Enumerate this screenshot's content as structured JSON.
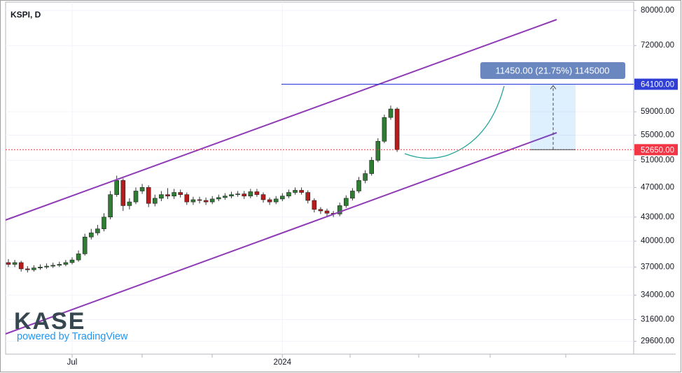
{
  "chart_data": {
    "type": "candlestick",
    "title": "KSPI, D",
    "logo": "KASE",
    "logo_subtitle": "powered by TradingView",
    "log_scale": true,
    "up_color": "#2e7d32",
    "down_color": "#b71c1c",
    "categories": [
      null,
      null,
      null,
      null,
      null,
      null,
      null,
      null,
      null,
      null,
      "Jul",
      null,
      null,
      null,
      null,
      null,
      null,
      null,
      null,
      null,
      null,
      null,
      null,
      null,
      null,
      null,
      null,
      null,
      null,
      null,
      null,
      null,
      null,
      null,
      null,
      null,
      null,
      null,
      null,
      null,
      null,
      null,
      null,
      "2024",
      null,
      null,
      null,
      null,
      null,
      null,
      null,
      null,
      null,
      null,
      null,
      null,
      null,
      null,
      null,
      null,
      null,
      null
    ],
    "open": [
      37500,
      37300,
      37500,
      36800,
      36700,
      36900,
      37000,
      37100,
      37200,
      37300,
      37500,
      37800,
      38500,
      40500,
      41000,
      41500,
      43000,
      46000,
      48000,
      44500,
      45000,
      46500,
      47000,
      44800,
      45500,
      46000,
      45800,
      46300,
      46000,
      45000,
      45300,
      45200,
      45000,
      45400,
      45600,
      45800,
      46000,
      46100,
      45800,
      46400,
      46000,
      45300,
      45000,
      45400,
      45800,
      46300,
      46600,
      46300,
      45200,
      44000,
      43800,
      43500,
      43400,
      44500,
      45500,
      46500,
      48000,
      49000,
      51000,
      54000,
      58000,
      59500
    ],
    "high": [
      37900,
      37800,
      37700,
      37100,
      37200,
      37300,
      37400,
      37500,
      37600,
      37800,
      38100,
      38900,
      40900,
      41500,
      42000,
      43500,
      46500,
      48700,
      48300,
      45500,
      47000,
      47500,
      47300,
      46000,
      46500,
      46900,
      46800,
      46700,
      46300,
      45700,
      45700,
      45600,
      45800,
      46000,
      46200,
      46400,
      46500,
      46500,
      46800,
      46800,
      46300,
      45600,
      45800,
      46200,
      46700,
      47000,
      47000,
      46600,
      45500,
      44300,
      44100,
      43800,
      44900,
      45900,
      46900,
      48500,
      49500,
      51500,
      54500,
      58500,
      60100,
      59800
    ],
    "low": [
      37000,
      37000,
      36500,
      36400,
      36500,
      36700,
      36800,
      36900,
      37000,
      37100,
      37300,
      37600,
      38300,
      40200,
      40700,
      41200,
      42700,
      45700,
      43800,
      44000,
      44700,
      46100,
      44300,
      44400,
      45100,
      45400,
      45400,
      45600,
      44600,
      44600,
      44800,
      44600,
      44700,
      45100,
      45300,
      45500,
      45700,
      45400,
      45500,
      45700,
      44900,
      44600,
      44700,
      45100,
      45500,
      46000,
      46000,
      44800,
      43600,
      43400,
      43100,
      43000,
      43100,
      44200,
      45200,
      46200,
      47600,
      48700,
      50700,
      53700,
      57600,
      52300
    ],
    "close": [
      37300,
      37500,
      36800,
      36700,
      36900,
      37000,
      37100,
      37200,
      37300,
      37500,
      37800,
      38500,
      40500,
      41000,
      41500,
      43000,
      46000,
      48000,
      44500,
      45000,
      46500,
      47000,
      44800,
      45500,
      46000,
      45800,
      46300,
      46000,
      45000,
      45300,
      45200,
      45000,
      45400,
      45600,
      45800,
      46000,
      46100,
      45800,
      46400,
      46000,
      45300,
      45000,
      45400,
      45800,
      46300,
      46600,
      46300,
      45200,
      44000,
      43800,
      43500,
      43400,
      44500,
      45500,
      46500,
      48000,
      49000,
      51000,
      54000,
      58000,
      59500,
      52650
    ],
    "ylim": [
      28600,
      81700
    ],
    "yticks": [
      {
        "value": 80000,
        "label": "80000.00"
      },
      {
        "value": 72000,
        "label": "72000.00"
      },
      {
        "value": 59000,
        "label": "59000.00"
      },
      {
        "value": 55000,
        "label": "55000.00"
      },
      {
        "value": 51000,
        "label": "51000.00"
      },
      {
        "value": 47000,
        "label": "47000.00"
      },
      {
        "value": 43000,
        "label": "43000.00"
      },
      {
        "value": 40000,
        "label": "40000.00"
      },
      {
        "value": 37000,
        "label": "37000.00"
      },
      {
        "value": 34000,
        "label": "34000.00"
      },
      {
        "value": 31600,
        "label": "31600.00"
      },
      {
        "value": 29600,
        "label": "29600.00"
      }
    ],
    "price_lines": [
      {
        "value": 64100,
        "label": "64100.00",
        "color": "#2f3ed4"
      },
      {
        "value": 52650,
        "label": "52650.00",
        "color": "#f23645"
      }
    ],
    "range_label": "11450.00 (21.75%) 1145000",
    "grid": true
  }
}
